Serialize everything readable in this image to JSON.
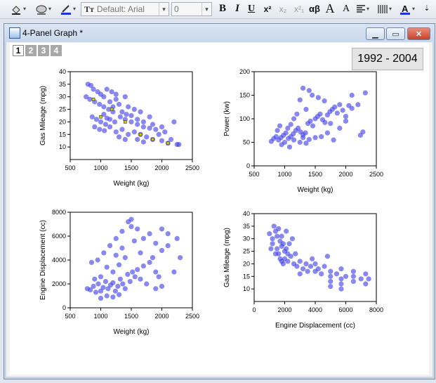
{
  "toolbar": {
    "font_combo": "Default: Arial",
    "size_combo": "0",
    "bold": "B",
    "italic": "I",
    "underline": "U",
    "superscript": "x²",
    "subscript": "x₂",
    "supersub": "x²₁",
    "greek": "αβ",
    "increase_font": "A",
    "decrease_font": "A"
  },
  "window": {
    "title": "4-Panel Graph *",
    "layer_tabs": [
      "1",
      "2",
      "3",
      "4"
    ],
    "active_layer": "1"
  },
  "graph": {
    "year_label": "1992 - 2004"
  },
  "colors": {
    "points": "#3f3fe6",
    "highlight": "#d4c800",
    "axis": "#000000"
  },
  "chart_data": [
    {
      "type": "scatter",
      "xlabel": "Weight (kg)",
      "ylabel": "Gas Mileage (mpg)",
      "xlim": [
        500,
        2500
      ],
      "ylim": [
        5,
        40
      ],
      "xticks": [
        "500",
        "1000",
        "1500",
        "2000",
        "2500"
      ],
      "yticks": [
        "10",
        "15",
        "20",
        "25",
        "30",
        "35",
        "40"
      ],
      "points": [
        [
          790,
          35
        ],
        [
          840,
          34.5
        ],
        [
          880,
          33
        ],
        [
          950,
          32
        ],
        [
          1000,
          31
        ],
        [
          1050,
          30
        ],
        [
          1100,
          33
        ],
        [
          1180,
          32
        ],
        [
          1250,
          31
        ],
        [
          1400,
          30
        ],
        [
          820,
          29
        ],
        [
          900,
          28
        ],
        [
          980,
          27
        ],
        [
          1050,
          26
        ],
        [
          1130,
          25
        ],
        [
          1200,
          24
        ],
        [
          1300,
          27
        ],
        [
          1450,
          26
        ],
        [
          1550,
          25
        ],
        [
          1650,
          24
        ],
        [
          860,
          22
        ],
        [
          930,
          21
        ],
        [
          1000,
          20
        ],
        [
          1080,
          19
        ],
        [
          1150,
          21
        ],
        [
          1230,
          20
        ],
        [
          1320,
          22
        ],
        [
          1400,
          21
        ],
        [
          1500,
          20
        ],
        [
          1600,
          19
        ],
        [
          1700,
          18
        ],
        [
          1800,
          17.5
        ],
        [
          1900,
          17
        ],
        [
          900,
          18
        ],
        [
          980,
          17
        ],
        [
          1060,
          16.5
        ],
        [
          1150,
          18
        ],
        [
          1250,
          16
        ],
        [
          1350,
          17
        ],
        [
          1450,
          15
        ],
        [
          1550,
          16
        ],
        [
          1650,
          15
        ],
        [
          1750,
          14
        ],
        [
          1850,
          13
        ],
        [
          2000,
          12.5
        ],
        [
          2100,
          11.5
        ],
        [
          2250,
          11
        ],
        [
          1950,
          15
        ],
        [
          2050,
          16
        ],
        [
          2200,
          20
        ],
        [
          1300,
          14
        ],
        [
          1400,
          13
        ],
        [
          1600,
          13
        ],
        [
          1700,
          12
        ],
        [
          1150,
          28
        ],
        [
          1250,
          29
        ],
        [
          1350,
          24
        ],
        [
          1420,
          23
        ],
        [
          1500,
          22.5
        ],
        [
          1800,
          22
        ],
        [
          2150,
          13
        ],
        [
          2280,
          11
        ],
        [
          1600,
          21
        ],
        [
          1700,
          20
        ],
        [
          1850,
          19
        ],
        [
          2000,
          18
        ],
        [
          760,
          30
        ],
        [
          1050,
          23
        ],
        [
          1100,
          21.5
        ],
        [
          1200,
          26
        ]
      ]
    },
    {
      "type": "scatter",
      "xlabel": "Weight (kg)",
      "ylabel": "Power (kw)",
      "xlim": [
        500,
        2500
      ],
      "ylim": [
        0,
        200
      ],
      "xticks": [
        "500",
        "1000",
        "1500",
        "2000",
        "2500"
      ],
      "yticks": [
        "0",
        "50",
        "100",
        "150",
        "200"
      ],
      "points": [
        [
          780,
          52
        ],
        [
          820,
          58
        ],
        [
          860,
          62
        ],
        [
          900,
          55
        ],
        [
          940,
          60
        ],
        [
          980,
          65
        ],
        [
          1020,
          70
        ],
        [
          1060,
          58
        ],
        [
          1100,
          62
        ],
        [
          1140,
          68
        ],
        [
          1180,
          75
        ],
        [
          1220,
          80
        ],
        [
          1260,
          72
        ],
        [
          1300,
          66
        ],
        [
          1340,
          70
        ],
        [
          1380,
          90
        ],
        [
          1420,
          95
        ],
        [
          1460,
          85
        ],
        [
          1500,
          100
        ],
        [
          1540,
          105
        ],
        [
          1580,
          110
        ],
        [
          1620,
          98
        ],
        [
          1660,
          92
        ],
        [
          1700,
          108
        ],
        [
          1740,
          115
        ],
        [
          1780,
          120
        ],
        [
          1820,
          125
        ],
        [
          1860,
          112
        ],
        [
          1900,
          130
        ],
        [
          1950,
          118
        ],
        [
          2000,
          105
        ],
        [
          2050,
          128
        ],
        [
          2100,
          122
        ],
        [
          2200,
          130
        ],
        [
          2320,
          155
        ],
        [
          2280,
          72
        ],
        [
          2240,
          65
        ],
        [
          1400,
          160
        ],
        [
          1450,
          150
        ],
        [
          1300,
          165
        ],
        [
          1250,
          140
        ],
        [
          1350,
          120
        ],
        [
          1200,
          110
        ],
        [
          1150,
          100
        ],
        [
          1100,
          88
        ],
        [
          1050,
          80
        ],
        [
          1000,
          50
        ],
        [
          950,
          45
        ],
        [
          1080,
          40
        ],
        [
          1150,
          55
        ],
        [
          1250,
          50
        ],
        [
          1350,
          48
        ],
        [
          1500,
          60
        ],
        [
          1600,
          62
        ],
        [
          1700,
          70
        ],
        [
          1800,
          55
        ],
        [
          1900,
          80
        ],
        [
          2000,
          95
        ],
        [
          2100,
          150
        ],
        [
          1550,
          145
        ],
        [
          1650,
          138
        ],
        [
          1750,
          90
        ],
        [
          880,
          75
        ],
        [
          920,
          85
        ],
        [
          1300,
          60
        ],
        [
          1400,
          56
        ]
      ]
    },
    {
      "type": "scatter",
      "xlabel": "Weight (kg)",
      "ylabel": "Engine Displacement (cc)",
      "xlim": [
        500,
        2500
      ],
      "ylim": [
        0,
        8000
      ],
      "xticks": [
        "500",
        "1000",
        "1500",
        "2000",
        "2500"
      ],
      "yticks": [
        "0",
        "2000",
        "4000",
        "6000",
        "8000"
      ],
      "points": [
        [
          780,
          1600
        ],
        [
          830,
          1500
        ],
        [
          880,
          1800
        ],
        [
          920,
          1300
        ],
        [
          960,
          2000
        ],
        [
          1000,
          1400
        ],
        [
          1040,
          1700
        ],
        [
          1080,
          2200
        ],
        [
          1120,
          1600
        ],
        [
          1160,
          1900
        ],
        [
          1200,
          2100
        ],
        [
          1240,
          1400
        ],
        [
          1280,
          1800
        ],
        [
          1320,
          2400
        ],
        [
          1360,
          2000
        ],
        [
          1400,
          1600
        ],
        [
          1440,
          2800
        ],
        [
          1480,
          2200
        ],
        [
          1520,
          3000
        ],
        [
          1560,
          2600
        ],
        [
          1600,
          3200
        ],
        [
          1650,
          2400
        ],
        [
          1700,
          3500
        ],
        [
          1750,
          2000
        ],
        [
          1800,
          3800
        ],
        [
          1850,
          4200
        ],
        [
          1900,
          3000
        ],
        [
          1950,
          2600
        ],
        [
          2000,
          4800
        ],
        [
          2100,
          5200
        ],
        [
          2250,
          5800
        ],
        [
          2300,
          4200
        ],
        [
          2200,
          3000
        ],
        [
          850,
          3800
        ],
        [
          950,
          4000
        ],
        [
          1050,
          4600
        ],
        [
          1150,
          5200
        ],
        [
          1250,
          5800
        ],
        [
          1350,
          6400
        ],
        [
          1450,
          7200
        ],
        [
          1500,
          6800
        ],
        [
          1550,
          5600
        ],
        [
          1600,
          6600
        ],
        [
          1700,
          5800
        ],
        [
          1800,
          6200
        ],
        [
          1900,
          5400
        ],
        [
          2000,
          6600
        ],
        [
          2100,
          6200
        ],
        [
          1400,
          4200
        ],
        [
          1300,
          3600
        ],
        [
          1200,
          3000
        ],
        [
          1100,
          3400
        ],
        [
          1000,
          2600
        ],
        [
          900,
          2400
        ],
        [
          1000,
          800
        ],
        [
          1100,
          1000
        ],
        [
          1200,
          900
        ],
        [
          1300,
          1100
        ],
        [
          1900,
          1600
        ],
        [
          2000,
          1800
        ],
        [
          1500,
          7400
        ],
        [
          1350,
          5000
        ],
        [
          1250,
          4400
        ],
        [
          1650,
          4600
        ]
      ]
    },
    {
      "type": "scatter",
      "xlabel": "Engine Displacement (cc)",
      "ylabel": "Gas Mileage (mpg)",
      "xlim": [
        0,
        8000
      ],
      "ylim": [
        5,
        40
      ],
      "xticks": [
        "0",
        "2000",
        "4000",
        "6000",
        "8000"
      ],
      "yticks": [
        "10",
        "15",
        "20",
        "25",
        "30",
        "35",
        "40"
      ],
      "points": [
        [
          1000,
          32
        ],
        [
          1200,
          30
        ],
        [
          1300,
          35
        ],
        [
          1400,
          33
        ],
        [
          1500,
          31
        ],
        [
          1600,
          34
        ],
        [
          1700,
          29
        ],
        [
          1800,
          27
        ],
        [
          1900,
          28
        ],
        [
          2000,
          25
        ],
        [
          2100,
          26
        ],
        [
          2200,
          24
        ],
        [
          1500,
          26
        ],
        [
          1600,
          24
        ],
        [
          1700,
          22
        ],
        [
          1800,
          21
        ],
        [
          1900,
          20
        ],
        [
          2000,
          22
        ],
        [
          2200,
          21
        ],
        [
          2400,
          23
        ],
        [
          2600,
          20
        ],
        [
          2800,
          19
        ],
        [
          3000,
          21
        ],
        [
          3200,
          18
        ],
        [
          3400,
          20
        ],
        [
          3500,
          17
        ],
        [
          3700,
          19
        ],
        [
          3800,
          22
        ],
        [
          4000,
          20
        ],
        [
          4200,
          18
        ],
        [
          4400,
          16
        ],
        [
          4600,
          19
        ],
        [
          5000,
          17
        ],
        [
          5000,
          15
        ],
        [
          5000,
          13
        ],
        [
          5000,
          11
        ],
        [
          5400,
          16
        ],
        [
          5700,
          18
        ],
        [
          5700,
          14
        ],
        [
          5700,
          12
        ],
        [
          5700,
          10
        ],
        [
          6000,
          15
        ],
        [
          6500,
          17
        ],
        [
          6500,
          13
        ],
        [
          6500,
          15
        ],
        [
          7000,
          14
        ],
        [
          7300,
          16
        ],
        [
          7300,
          12
        ],
        [
          7500,
          14
        ],
        [
          2500,
          30
        ],
        [
          2300,
          28
        ],
        [
          1200,
          28
        ],
        [
          1400,
          24
        ],
        [
          1100,
          26
        ],
        [
          4800,
          23
        ],
        [
          4000,
          17
        ],
        [
          3000,
          16
        ],
        [
          2700,
          24
        ],
        [
          2100,
          33
        ],
        [
          1800,
          31
        ]
      ]
    }
  ]
}
